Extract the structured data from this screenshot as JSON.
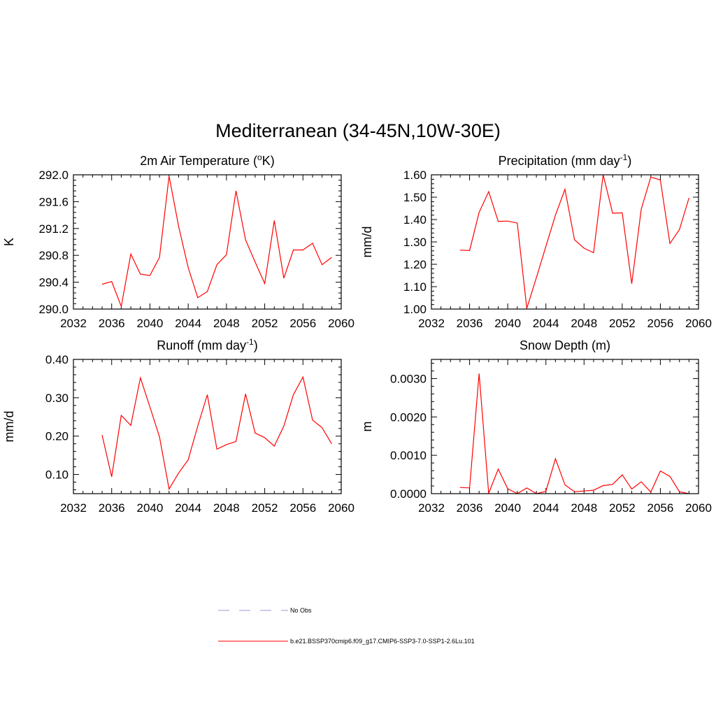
{
  "figure": {
    "title": "Mediterranean (34-45N,10W-30E)"
  },
  "legend": {
    "entries": [
      {
        "label": "No Obs",
        "color": "#9999dd",
        "dash": true
      },
      {
        "label": "b.e21.BSSP370cmip6.f09_g17.CMIP6-SSP3-7.0-SSP1-2.6Lu.101",
        "color": "#ff0000",
        "dash": false
      }
    ]
  },
  "chart_data": [
    {
      "type": "line",
      "title": "2m Air Temperature (",
      "title_sup": "o",
      "title_after": "K)",
      "ylabel": "K",
      "xlim": [
        2032,
        2060
      ],
      "ylim": [
        290.0,
        292.0
      ],
      "xticks": [
        2032,
        2036,
        2040,
        2044,
        2048,
        2052,
        2056,
        2060
      ],
      "xtick_labels": [
        "2032",
        "2036",
        "2040",
        "2044",
        "2048",
        "2052",
        "2056",
        "2060"
      ],
      "yticks": [
        290.0,
        290.4,
        290.8,
        291.2,
        291.6,
        292.0
      ],
      "ytick_labels": [
        "290.0",
        "290.4",
        "290.8",
        "291.2",
        "291.6",
        "292.0"
      ],
      "series": [
        {
          "color": "#ff0000",
          "x": [
            2035,
            2036,
            2037,
            2038,
            2039,
            2040,
            2041,
            2042,
            2043,
            2044,
            2045,
            2046,
            2047,
            2048,
            2049,
            2050,
            2051,
            2052,
            2053,
            2054,
            2055,
            2056,
            2057,
            2058,
            2059
          ],
          "y": [
            290.37,
            290.41,
            290.04,
            290.82,
            290.52,
            290.5,
            290.77,
            291.98,
            291.23,
            290.62,
            290.17,
            290.26,
            290.66,
            290.81,
            291.76,
            291.03,
            290.7,
            290.38,
            291.32,
            290.46,
            290.88,
            290.88,
            290.98,
            290.66,
            290.77
          ]
        }
      ]
    },
    {
      "type": "line",
      "title": "Precipitation (mm day",
      "title_sup": "-1",
      "title_after": ")",
      "ylabel": "mm/d",
      "xlim": [
        2032,
        2060
      ],
      "ylim": [
        1.0,
        1.6
      ],
      "xticks": [
        2032,
        2036,
        2040,
        2044,
        2048,
        2052,
        2056,
        2060
      ],
      "xtick_labels": [
        "2032",
        "2036",
        "2040",
        "2044",
        "2048",
        "2052",
        "2056",
        "2060"
      ],
      "yticks": [
        1.0,
        1.1,
        1.2,
        1.3,
        1.4,
        1.5,
        1.6
      ],
      "ytick_labels": [
        "1.00",
        "1.10",
        "1.20",
        "1.30",
        "1.40",
        "1.50",
        "1.60"
      ],
      "series": [
        {
          "color": "#ff0000",
          "x": [
            2035,
            2036,
            2037,
            2038,
            2039,
            2040,
            2041,
            2042,
            2043,
            2044,
            2045,
            2046,
            2047,
            2048,
            2049,
            2050,
            2051,
            2052,
            2053,
            2054,
            2055,
            2056,
            2057,
            2058,
            2059
          ],
          "y": [
            1.263,
            1.262,
            1.432,
            1.525,
            1.392,
            1.393,
            1.384,
            1.003,
            1.14,
            1.28,
            1.42,
            1.535,
            1.31,
            1.272,
            1.252,
            1.6,
            1.428,
            1.43,
            1.113,
            1.447,
            1.59,
            1.577,
            1.293,
            1.355,
            1.497
          ]
        }
      ]
    },
    {
      "type": "line",
      "title": "Runoff (mm day",
      "title_sup": "-1",
      "title_after": ")",
      "ylabel": "mm/d",
      "xlim": [
        2032,
        2060
      ],
      "ylim": [
        0.05,
        0.4
      ],
      "xticks": [
        2032,
        2036,
        2040,
        2044,
        2048,
        2052,
        2056,
        2060
      ],
      "xtick_labels": [
        "2032",
        "2036",
        "2040",
        "2044",
        "2048",
        "2052",
        "2056",
        "2060"
      ],
      "yticks": [
        0.1,
        0.2,
        0.3,
        0.4
      ],
      "ytick_labels": [
        "0.10",
        "0.20",
        "0.30",
        "0.40"
      ],
      "series": [
        {
          "color": "#ff0000",
          "x": [
            2035,
            2036,
            2037,
            2038,
            2039,
            2040,
            2041,
            2042,
            2043,
            2044,
            2045,
            2046,
            2047,
            2048,
            2049,
            2050,
            2051,
            2052,
            2053,
            2054,
            2055,
            2056,
            2057,
            2058,
            2059
          ],
          "y": [
            0.203,
            0.094,
            0.254,
            0.228,
            0.352,
            0.276,
            0.198,
            0.062,
            0.104,
            0.138,
            0.226,
            0.308,
            0.166,
            0.178,
            0.186,
            0.31,
            0.208,
            0.196,
            0.174,
            0.226,
            0.308,
            0.354,
            0.242,
            0.222,
            0.18
          ]
        }
      ]
    },
    {
      "type": "line",
      "title": "Snow Depth (m)",
      "title_sup": "",
      "title_after": "",
      "ylabel": "m",
      "xlim": [
        2032,
        2060
      ],
      "ylim": [
        0.0,
        0.0035
      ],
      "xticks": [
        2032,
        2036,
        2040,
        2044,
        2048,
        2052,
        2056,
        2060
      ],
      "xtick_labels": [
        "2032",
        "2036",
        "2040",
        "2044",
        "2048",
        "2052",
        "2056",
        "2060"
      ],
      "yticks": [
        0.0,
        0.001,
        0.002,
        0.003
      ],
      "ytick_labels": [
        "0.0000",
        "0.0010",
        "0.0020",
        "0.0030"
      ],
      "series": [
        {
          "color": "#ff0000",
          "x": [
            2035,
            2036,
            2037,
            2038,
            2039,
            2040,
            2041,
            2042,
            2043,
            2044,
            2045,
            2046,
            2047,
            2048,
            2049,
            2050,
            2051,
            2052,
            2053,
            2054,
            2055,
            2056,
            2057,
            2058,
            2059
          ],
          "y": [
            0.00016,
            0.00015,
            0.00313,
            1e-05,
            0.00064,
            0.00013,
            0.0,
            0.00015,
            0.0,
            6e-05,
            0.00091,
            0.00023,
            5e-05,
            7e-05,
            9e-05,
            0.00021,
            0.00024,
            0.00049,
            0.00012,
            0.00031,
            4e-05,
            0.00059,
            0.00045,
            5e-05,
            0.0
          ]
        }
      ]
    }
  ]
}
